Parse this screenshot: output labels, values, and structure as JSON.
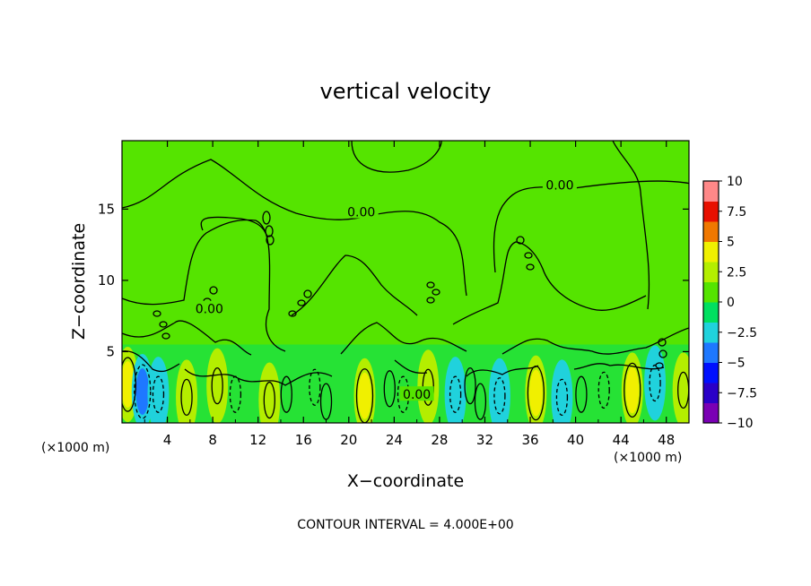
{
  "chart_data": {
    "type": "heatmap",
    "title": "vertical velocity",
    "xlabel": "X−coordinate",
    "ylabel": "Z−coordinate",
    "x_unit": "(×1000 m)",
    "footer": "CONTOUR INTERVAL = 4.000E+00",
    "xlim": [
      0,
      50
    ],
    "ylim": [
      0,
      19.8
    ],
    "x_ticks": [
      4,
      8,
      12,
      16,
      20,
      24,
      28,
      32,
      36,
      40,
      44,
      48
    ],
    "y_ticks": [
      5,
      10,
      15
    ],
    "colorbar": {
      "min": -10,
      "max": 10,
      "ticks": [
        10,
        7.5,
        5,
        2.5,
        0,
        -2.5,
        -5,
        -7.5,
        -10
      ],
      "tick_labels": [
        "10",
        "7.5",
        "5",
        "2.5",
        "0",
        "−2.5",
        "−5",
        "−7.5",
        "−10"
      ],
      "colors": [
        "#7a00b4",
        "#2a00c8",
        "#0010ff",
        "#1e78ff",
        "#20d2dc",
        "#00e060",
        "#55e400",
        "#b4ee00",
        "#f0f000",
        "#f07800",
        "#e81000",
        "#ff8888"
      ]
    },
    "contour_labels": [
      {
        "text": "0.00",
        "x": 38.6,
        "z": 16.7
      },
      {
        "text": "0.00",
        "x": 21.1,
        "z": 14.8
      },
      {
        "text": "0.00",
        "x": 7.7,
        "z": 8.0
      },
      {
        "text": "0.00",
        "x": 26.0,
        "z": 2.0
      }
    ],
    "cells": [
      {
        "x": 0.5,
        "z": 2.7,
        "v": 5.5
      },
      {
        "x": 1.8,
        "z": 2.2,
        "v": -6.0
      },
      {
        "x": 3.2,
        "z": 2.0,
        "v": -3.0
      },
      {
        "x": 5.7,
        "z": 1.8,
        "v": 3.0
      },
      {
        "x": 8.4,
        "z": 2.6,
        "v": 4.0
      },
      {
        "x": 10.0,
        "z": 2.0,
        "v": -1.5
      },
      {
        "x": 13.0,
        "z": 1.6,
        "v": 2.5
      },
      {
        "x": 14.5,
        "z": 2.0,
        "v": 2.0
      },
      {
        "x": 17.0,
        "z": 2.5,
        "v": -2.0
      },
      {
        "x": 18.0,
        "z": 1.5,
        "v": 2.0
      },
      {
        "x": 21.4,
        "z": 1.9,
        "v": 5.0
      },
      {
        "x": 23.6,
        "z": 2.4,
        "v": 2.2
      },
      {
        "x": 24.8,
        "z": 2.0,
        "v": -2.0
      },
      {
        "x": 27.0,
        "z": 2.5,
        "v": 4.0
      },
      {
        "x": 29.4,
        "z": 2.0,
        "v": -4.0
      },
      {
        "x": 30.7,
        "z": 2.6,
        "v": 2.0
      },
      {
        "x": 31.6,
        "z": 1.5,
        "v": 2.0
      },
      {
        "x": 33.3,
        "z": 1.9,
        "v": -4.0
      },
      {
        "x": 36.5,
        "z": 2.1,
        "v": 6.0
      },
      {
        "x": 38.8,
        "z": 1.8,
        "v": -3.0
      },
      {
        "x": 40.5,
        "z": 2.0,
        "v": 2.0
      },
      {
        "x": 42.5,
        "z": 2.3,
        "v": -2.0
      },
      {
        "x": 45.0,
        "z": 2.3,
        "v": 5.0
      },
      {
        "x": 47.0,
        "z": 2.8,
        "v": -3.5
      },
      {
        "x": 49.5,
        "z": 2.3,
        "v": 4.0
      }
    ]
  }
}
